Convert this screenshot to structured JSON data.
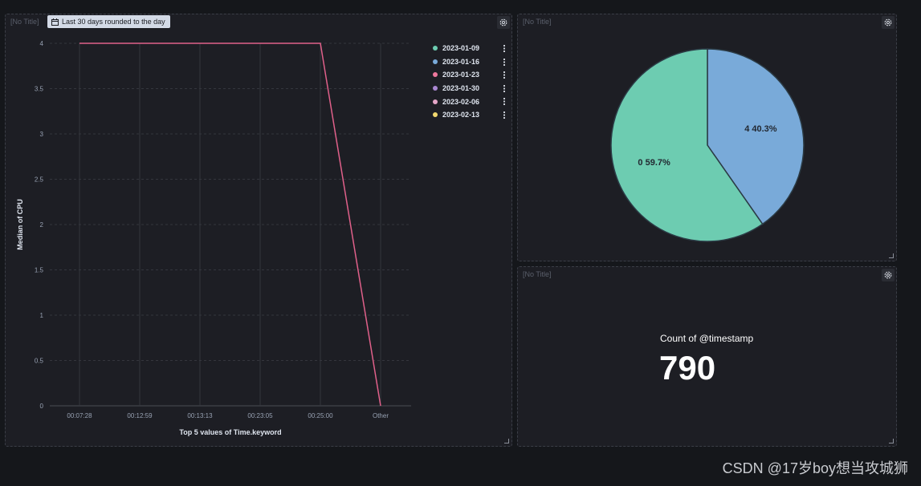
{
  "panels": {
    "line": {
      "title": "[No Title]",
      "time_badge": "Last 30 days rounded to the day",
      "legend": [
        {
          "label": "2023-01-09",
          "color": "#6dccb1"
        },
        {
          "label": "2023-01-16",
          "color": "#79aad9"
        },
        {
          "label": "2023-01-23",
          "color": "#ee789d"
        },
        {
          "label": "2023-01-30",
          "color": "#a987d1"
        },
        {
          "label": "2023-02-06",
          "color": "#e4a6c7"
        },
        {
          "label": "2023-02-13",
          "color": "#f1d86f"
        }
      ]
    },
    "pie": {
      "title": "[No Title]"
    },
    "metric": {
      "title": "[No Title]",
      "label": "Count of @timestamp",
      "value": "790"
    }
  },
  "chart_data": [
    {
      "type": "line",
      "title": "",
      "xlabel": "Top 5 values of Time.keyword",
      "ylabel": "Median of CPU",
      "categories": [
        "00:07:28",
        "00:12:59",
        "00:13:13",
        "00:23:05",
        "00:25:00",
        "Other"
      ],
      "series": [
        {
          "name": "2023-01-23",
          "color": "#e0608a",
          "values": [
            4,
            4,
            4,
            4,
            4,
            0
          ]
        }
      ],
      "ylim": [
        0,
        4
      ],
      "yticks": [
        "0",
        "0.5",
        "1",
        "1.5",
        "2",
        "2.5",
        "3",
        "3.5",
        "4"
      ],
      "grid": true,
      "legend": "right"
    },
    {
      "type": "pie",
      "slices": [
        {
          "label": "4",
          "percent_label": "4 40.3%",
          "value": 40.3,
          "color": "#79aad9"
        },
        {
          "label": "0",
          "percent_label": "0 59.7%",
          "value": 59.7,
          "color": "#6dccb1"
        }
      ]
    }
  ],
  "watermark": "CSDN @17岁boy想当攻城狮"
}
